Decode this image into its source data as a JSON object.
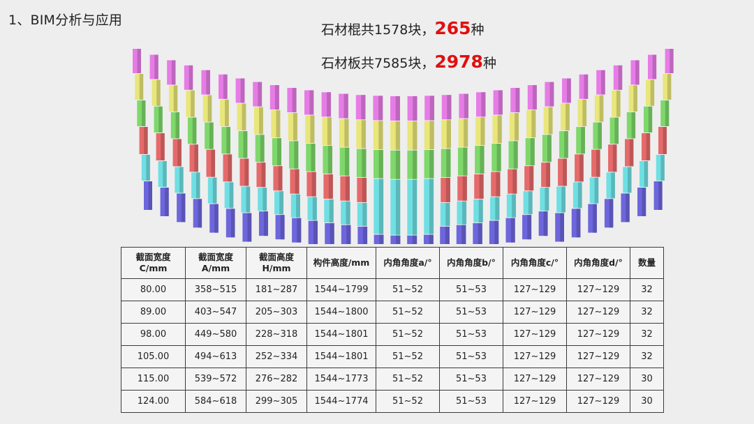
{
  "heading": "1、BIM分析与应用",
  "stats": [
    {
      "prefix": "石材棍共1578块，",
      "number": "265",
      "suffix": "种"
    },
    {
      "prefix": "石材板共7585块，",
      "number": "2978",
      "suffix": "种"
    }
  ],
  "model": {
    "segment_colors": {
      "magenta": "#e77ce7",
      "yellow": "#e9e67a",
      "green": "#7ed86a",
      "red": "#e66a6a",
      "cyan": "#6fdfe3",
      "blue": "#6d66dd"
    }
  },
  "table": {
    "headers": [
      [
        "截面宽度",
        "C/mm"
      ],
      [
        "截面宽度",
        "A/mm"
      ],
      [
        "截面高度",
        "H/mm"
      ],
      [
        "构件高度/mm"
      ],
      [
        "内角角度a/°"
      ],
      [
        "内角角度b/°"
      ],
      [
        "内角角度c/°"
      ],
      [
        "内角角度d/°"
      ],
      [
        "数量"
      ]
    ],
    "rows": [
      [
        "80.00",
        "358~515",
        "181~287",
        "1544~1799",
        "51~52",
        "51~53",
        "127~129",
        "127~129",
        "32"
      ],
      [
        "89.00",
        "403~547",
        "205~303",
        "1544~1800",
        "51~52",
        "51~53",
        "127~129",
        "127~129",
        "32"
      ],
      [
        "98.00",
        "449~580",
        "228~318",
        "1544~1801",
        "51~52",
        "51~53",
        "127~129",
        "127~129",
        "32"
      ],
      [
        "105.00",
        "494~613",
        "252~334",
        "1544~1801",
        "51~52",
        "51~53",
        "127~129",
        "127~129",
        "32"
      ],
      [
        "115.00",
        "539~572",
        "276~282",
        "1544~1773",
        "51~52",
        "51~53",
        "127~129",
        "127~129",
        "30"
      ],
      [
        "124.00",
        "584~618",
        "299~305",
        "1544~1774",
        "51~52",
        "51~53",
        "127~129",
        "127~129",
        "30"
      ]
    ]
  }
}
